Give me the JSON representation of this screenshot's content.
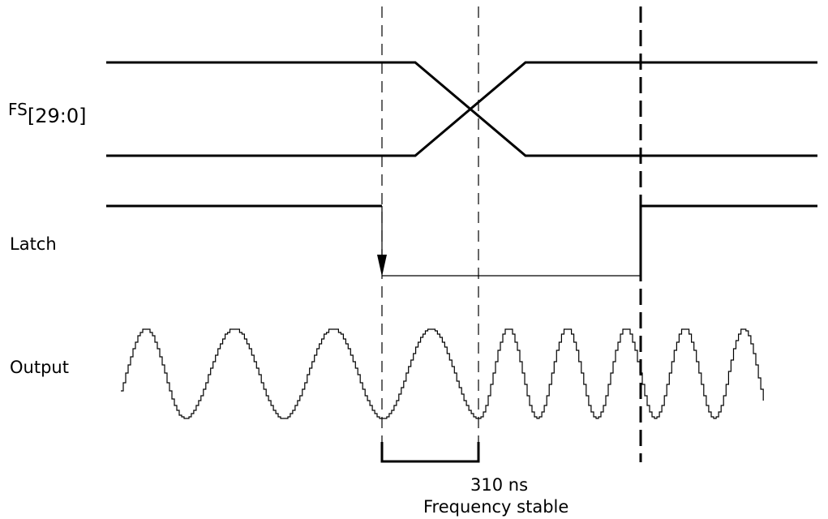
{
  "signals": {
    "fs_name": "FS",
    "fs_bus": "[29:0]",
    "latch": "Latch",
    "output": "Output"
  },
  "annotations": {
    "duration": "310 ns",
    "caption": "Frequency stable"
  }
}
